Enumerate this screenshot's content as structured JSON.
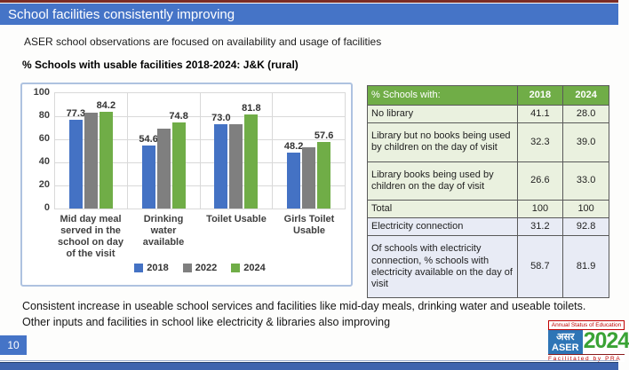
{
  "slide": {
    "title": "School facilities consistently improving",
    "subtitle": "ASER school observations are focused on availability and usage of facilities",
    "summary_line1": "Consistent increase in useable school services and facilities like mid-day meals, drinking water and useable toilets.",
    "summary_line2": "Other inputs and facilities in school like electricity & libraries also improving",
    "page_number": "10"
  },
  "chart_data": {
    "type": "bar",
    "title": "% Schools with usable facilities 2018-2024: J&K (rural)",
    "categories": [
      "Mid day meal served in the school on day of the visit",
      "Drinking water available",
      "Toilet Usable",
      "Girls Toilet Usable"
    ],
    "series": [
      {
        "name": "2018",
        "color": "#4472c4",
        "values": [
          77.3,
          54.6,
          73.0,
          48.2
        ],
        "labels": [
          "77.3",
          "54.6",
          "73.0",
          "48.2"
        ]
      },
      {
        "name": "2022",
        "color": "#7f7f7f",
        "values": [
          83,
          69,
          73,
          53
        ],
        "labels": [
          "",
          "",
          "",
          ""
        ]
      },
      {
        "name": "2024",
        "color": "#70ad47",
        "values": [
          84.2,
          74.8,
          81.8,
          57.6
        ],
        "labels": [
          "84.2",
          "74.8",
          "81.8",
          "57.6"
        ]
      }
    ],
    "ylim": [
      0,
      100
    ],
    "yticks": [
      100,
      80,
      60,
      40,
      20,
      0
    ],
    "grid": true,
    "legend_position": "bottom"
  },
  "table": {
    "header": [
      "% Schools with:",
      "2018",
      "2024"
    ],
    "rows": [
      {
        "label": "No library",
        "v2018": "41.1",
        "v2024": "28.0",
        "tint": "green",
        "pad": false
      },
      {
        "label": "Library but no books being used by children on the day of visit",
        "v2018": "32.3",
        "v2024": "39.0",
        "tint": "green",
        "pad": true
      },
      {
        "label": "Library books being used by children on the day of visit",
        "v2018": "26.6",
        "v2024": "33.0",
        "tint": "green",
        "pad": true
      },
      {
        "label": "Total",
        "v2018": "100",
        "v2024": "100",
        "tint": "green",
        "pad": false
      },
      {
        "label": "Electricity connection",
        "v2018": "31.2",
        "v2024": "92.8",
        "tint": "blue",
        "pad": false
      },
      {
        "label": "Of schools with electricity connection, % schools with electricity available on the day of visit",
        "v2018": "58.7",
        "v2024": "81.9",
        "tint": "blue",
        "pad": true
      }
    ]
  },
  "logo": {
    "top_text": "Annual Status of Education",
    "hindi": "असर",
    "latin": "ASER",
    "year": "2024",
    "bottom_text": "Facilitated by PRA"
  }
}
